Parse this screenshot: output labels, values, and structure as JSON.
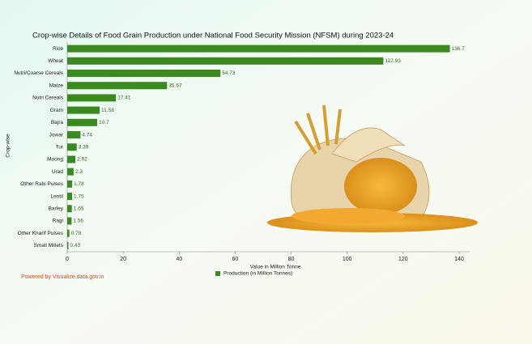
{
  "chart_data": {
    "type": "bar",
    "orientation": "horizontal",
    "title": "Crop-wise Details of Food Grain Production under National Food Security Mission (NFSM) during 2023-24",
    "x_label": "Value in Million Tonne",
    "y_label": "Crop-wise",
    "categories": [
      "Rice",
      "Wheat",
      "Nutri/Coarse Cereals",
      "Maize",
      "Nutri Cereals",
      "Gram",
      "Bajra",
      "Jowar",
      "Tur",
      "Moong",
      "Urad",
      "Other Rabi Pulses",
      "Lentil",
      "Barley",
      "Ragi",
      "Other Kharif Pulses",
      "Small Millets"
    ],
    "series": [
      {
        "name": "Production (in Million Tonnes)",
        "color": "#3b8a1f",
        "values": [
          136.7,
          112.93,
          54.73,
          35.67,
          17.41,
          11.58,
          10.7,
          4.74,
          3.39,
          2.92,
          2.3,
          1.78,
          1.75,
          1.65,
          1.56,
          0.78,
          0.43
        ]
      }
    ],
    "xlim": [
      0,
      140
    ],
    "xticks": [
      0,
      20,
      40,
      60,
      80,
      100,
      120,
      140
    ],
    "credit": "Powered by Visualize.data.gov.in"
  }
}
